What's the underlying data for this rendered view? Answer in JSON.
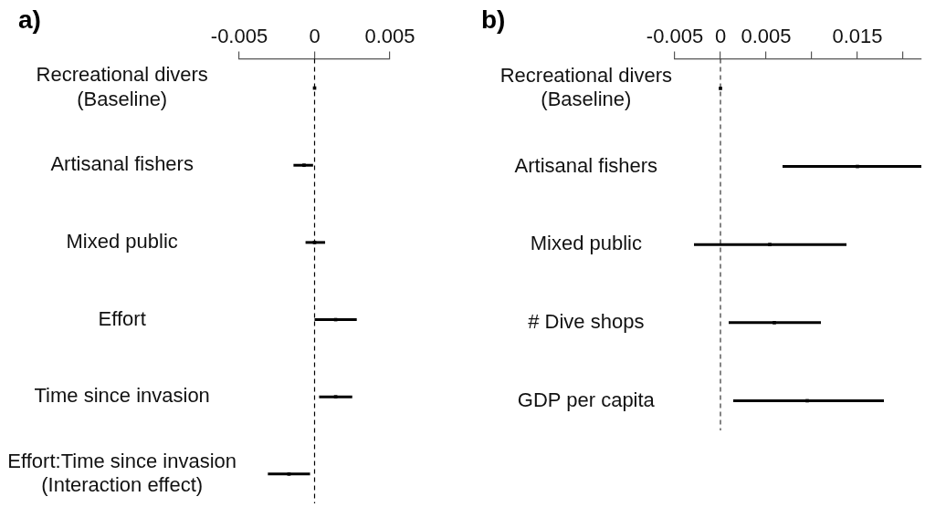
{
  "chart_data": [
    {
      "type": "scatter",
      "title": "a)",
      "orientation": "horizontal",
      "categories": [
        "Recreational divers\n(Baseline)",
        "Artisanal fishers",
        "Mixed public",
        "Effort",
        "Time since invasion",
        "Effort:Time since invasion\n(Interaction effect)"
      ],
      "values": [
        0,
        -0.0007,
        0,
        0.0014,
        0.0014,
        -0.0017
      ],
      "errors": [
        null,
        [
          -0.0014,
          -0.0001
        ],
        [
          -0.0006,
          0.0007
        ],
        [
          0,
          0.0028
        ],
        [
          0.0003,
          0.0025
        ],
        [
          -0.0031,
          -0.0003
        ]
      ],
      "color": "#000000",
      "marker": "square",
      "xlim": [
        -0.005,
        0.005
      ],
      "xticks": [
        -0.005,
        0,
        0.005
      ],
      "ref_lines": [
        {
          "axis": "x",
          "value": 0,
          "line_style": "dashed",
          "color": "#000000"
        }
      ]
    },
    {
      "type": "scatter",
      "title": "b)",
      "orientation": "horizontal",
      "categories": [
        "Recreational divers\n(Baseline)",
        "Artisanal fishers",
        "Mixed public",
        "# Dive shops",
        "GDP per capita"
      ],
      "values": [
        0,
        0.015,
        0.0054,
        0.0059,
        0.0095
      ],
      "errors": [
        null,
        [
          0.0068,
          0.022
        ],
        [
          -0.0029,
          0.0138
        ],
        [
          0.0009,
          0.011
        ],
        [
          0.0014,
          0.0179
        ]
      ],
      "color": "#000000",
      "marker": "square",
      "xlim": [
        -0.005,
        0.022
      ],
      "xticks": [
        -0.005,
        0,
        0.005,
        {
          "value": 0.01,
          "label": null
        },
        0.015,
        {
          "value": 0.02,
          "label": null
        }
      ],
      "ref_lines": [
        {
          "axis": "x",
          "value": 0,
          "line_style": "dashed",
          "color": "#333333"
        }
      ]
    }
  ]
}
